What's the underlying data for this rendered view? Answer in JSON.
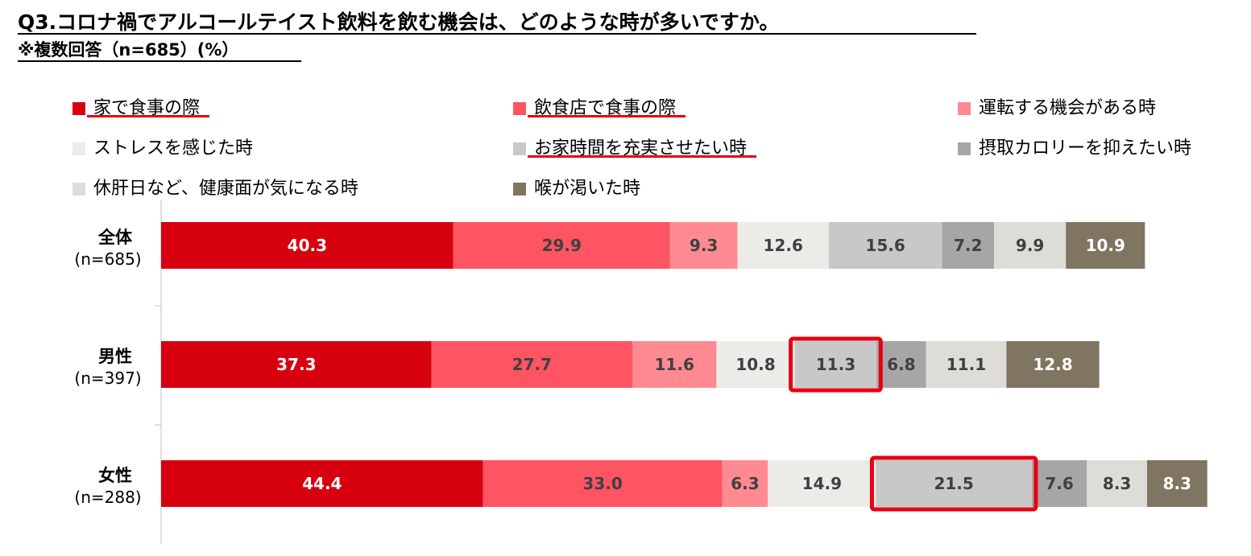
{
  "title": "Q3.コロナ禍でアルコールテイスト飲料を飲む機会は、どのような時が多いですか。",
  "subtitle": "※複数回答（n=685）(%）",
  "chart_data": {
    "type": "bar",
    "orientation": "horizontal-stacked",
    "categories": [
      {
        "name": "全体",
        "n": "(n=685)"
      },
      {
        "name": "男性",
        "n": "(n=397)"
      },
      {
        "name": "女性",
        "n": "(n=288)"
      }
    ],
    "series": [
      {
        "name": "家で食事の際",
        "color": "#d7000f",
        "label_color": "#ffffff",
        "values": [
          40.3,
          37.3,
          44.4
        ],
        "highlight_legend": true
      },
      {
        "name": "飲食店で食事の際",
        "color": "#ff5462",
        "label_color": "#404040",
        "values": [
          29.9,
          27.7,
          33.0
        ],
        "highlight_legend": true
      },
      {
        "name": "運転する機会がある時",
        "color": "#ff8a91",
        "label_color": "#404040",
        "values": [
          9.3,
          11.6,
          6.3
        ]
      },
      {
        "name": "ストレスを感じた時",
        "color": "#ecebe7",
        "label_color": "#404040",
        "values": [
          12.6,
          10.8,
          14.9
        ]
      },
      {
        "name": "お家時間を充実させたい時",
        "color": "#c8c8c8",
        "label_color": "#404040",
        "values": [
          15.6,
          11.3,
          21.5
        ],
        "highlight_legend": true,
        "highlight_values": [
          false,
          true,
          true
        ]
      },
      {
        "name": "摂取カロリーを抑えたい時",
        "color": "#a6a6a6",
        "label_color": "#404040",
        "values": [
          7.2,
          6.8,
          7.6
        ]
      },
      {
        "name": "休肝日など、健康面が気になる時",
        "color": "#dedcd6",
        "label_color": "#404040",
        "values": [
          9.9,
          11.1,
          8.3
        ]
      },
      {
        "name": "喉が渇いた時",
        "color": "#7f7560",
        "label_color": "#ffffff",
        "values": [
          10.9,
          12.8,
          8.3
        ]
      }
    ],
    "highlight_color": "#e60012",
    "legend_position": "top",
    "grid": false
  }
}
